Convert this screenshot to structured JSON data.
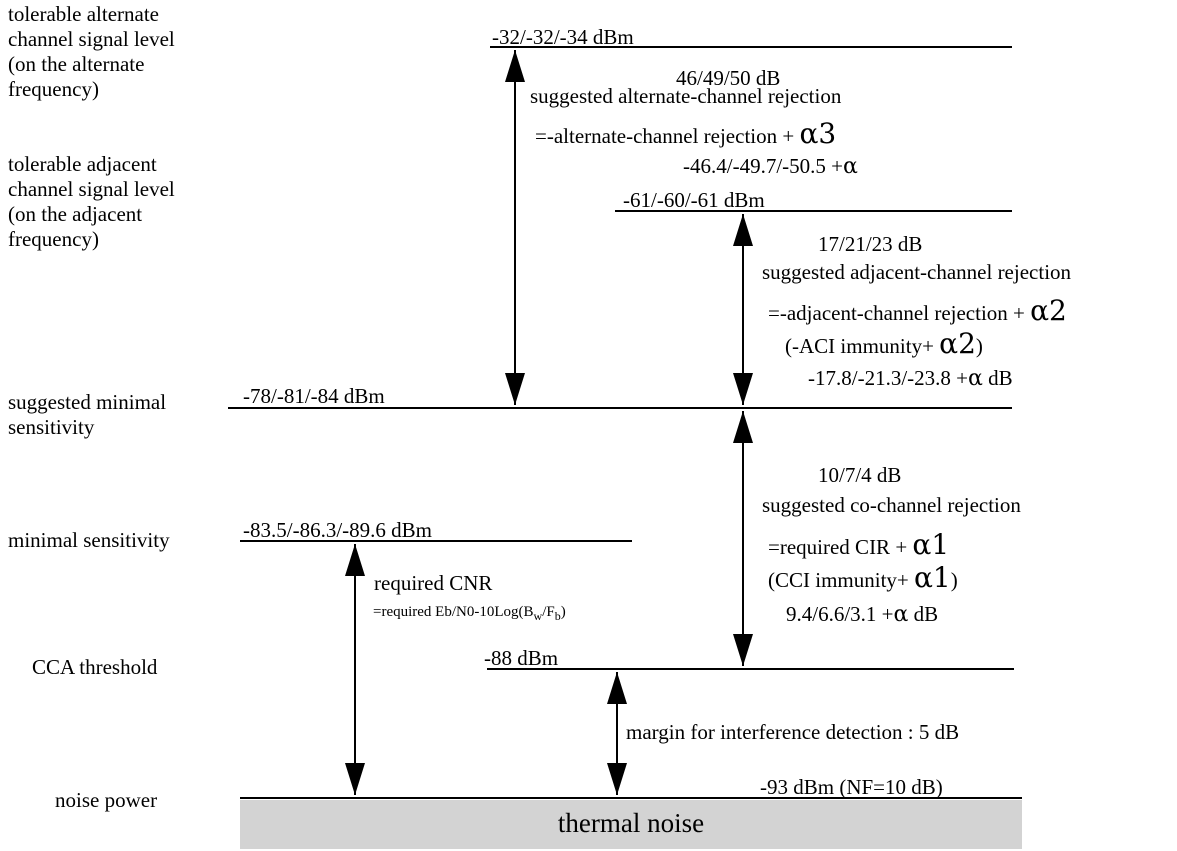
{
  "left_labels": {
    "tolerable_alternate": [
      "tolerable alternate",
      "channel signal level",
      "(on the alternate",
      "frequency)"
    ],
    "tolerable_adjacent": [
      "tolerable adjacent",
      "channel signal level",
      "(on the adjacent",
      "frequency)"
    ],
    "suggested_minimal_sensitivity": [
      "suggested minimal",
      "sensitivity"
    ],
    "minimal_sensitivity": "minimal sensitivity",
    "cca_threshold": "CCA threshold",
    "noise_power": "noise power"
  },
  "levels": {
    "alternate": "-32/-32/-34 dBm",
    "adjacent": "-61/-60/-61 dBm",
    "suggested_min": "-78/-81/-84 dBm",
    "min_sens": "-83.5/-86.3/-89.6 dBm",
    "cca": "-88 dBm",
    "noise": "-93 dBm (NF=10 dB)"
  },
  "alternate_rejection": {
    "value": "46/49/50 dB",
    "title": "suggested alternate-channel rejection",
    "formula": "=-alternate-channel rejection + ",
    "formula_greek": "α3",
    "numbers": "-46.4/-49.7/-50.5 +",
    "numbers_greek": "α"
  },
  "adjacent_rejection": {
    "value": "17/21/23 dB",
    "title": "suggested adjacent-channel rejection",
    "formula": "=-adjacent-channel rejection + ",
    "formula_greek": "α2",
    "immunity": "(-ACI immunity+ ",
    "immunity_greek": "α2",
    "immunity_close": ")",
    "numbers": "-17.8/-21.3/-23.8 +",
    "numbers_greek": "α",
    "numbers_unit": " dB"
  },
  "cochannel_rejection": {
    "value": "10/7/4 dB",
    "title": "suggested co-channel rejection",
    "formula": "=required CIR + ",
    "formula_greek": "α1",
    "immunity": "(CCI immunity+ ",
    "immunity_greek": "α1",
    "immunity_close": ")",
    "numbers": "9.4/6.6/3.1 +",
    "numbers_greek": "α",
    "numbers_unit": " dB"
  },
  "cnr": {
    "title": "required CNR",
    "formula_a": "=required Eb/N0-10Log(B",
    "formula_sub1": "w",
    "formula_b": "/F",
    "formula_sub2": "b",
    "formula_c": ")"
  },
  "margin": "margin for interference detection : 5 dB",
  "thermal_noise": "thermal noise"
}
